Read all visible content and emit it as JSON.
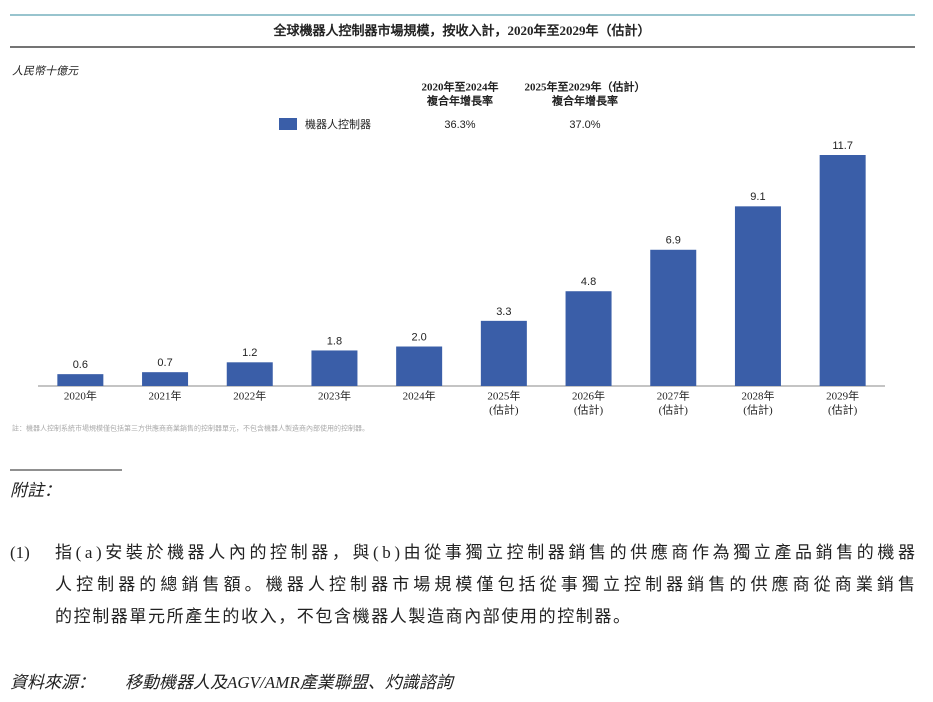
{
  "chart_data": {
    "type": "bar",
    "title": "全球機器人控制器市場規模，按收入計，2020年至2029年（估計）",
    "y_unit": "人民幣十億元",
    "categories": [
      [
        "2020年"
      ],
      [
        "2021年"
      ],
      [
        "2022年"
      ],
      [
        "2023年"
      ],
      [
        "2024年"
      ],
      [
        "2025年",
        "(估計)"
      ],
      [
        "2026年",
        "(估計)"
      ],
      [
        "2027年",
        "(估計)"
      ],
      [
        "2028年",
        "(估計)"
      ],
      [
        "2029年",
        "(估計)"
      ]
    ],
    "series": [
      {
        "name": "機器人控制器",
        "color": "#3a5ea8",
        "values": [
          0.6,
          0.7,
          1.2,
          1.8,
          2.0,
          3.3,
          4.8,
          6.9,
          9.1,
          11.7
        ],
        "value_labels": [
          "0.6",
          "0.7",
          "1.2",
          "1.8",
          "2.0",
          "3.3",
          "4.8",
          "6.9",
          "9.1",
          "11.7"
        ]
      }
    ],
    "cagr": [
      {
        "period": [
          "2020年至2024年",
          "複合年增長率"
        ],
        "value": 36.3,
        "label": "36.3%"
      },
      {
        "period": [
          "2025年至2029年（估計）",
          "複合年增長率"
        ],
        "value": 37.0,
        "label": "37.0%"
      }
    ],
    "note": "註：機器人控制系統市場規模僅包括第三方供應商商業銷售的控制器單元，不包含機器人製造商內部使用的控制器。"
  },
  "footnotes": {
    "heading": "附註：",
    "items": [
      {
        "marker": "(1)",
        "lines": [
          "指(a)安裝於機器人內的控制器，與(b)由從事獨立控制器銷售的供應商作為獨立產品銷售的機器",
          "人控制器的總銷售額。機器人控制器市場規模僅包括從事獨立控制器銷售的供應商從商業銷售",
          "的控制器單元所產生的收入，不包含機器人製造商內部使用的控制器。"
        ]
      }
    ]
  },
  "source": {
    "label": "資料來源：",
    "text": "移動機器人及AGV/AMR產業聯盟、灼識諮詢"
  }
}
